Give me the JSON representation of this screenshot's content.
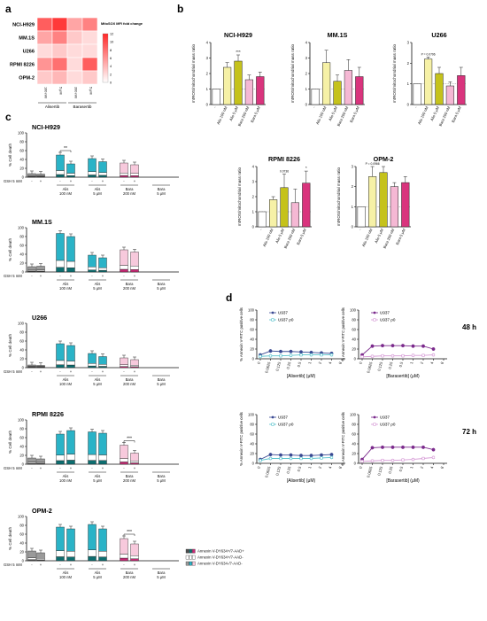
{
  "panel_labels": {
    "a": "a",
    "b": "b",
    "c": "c",
    "d": "d"
  },
  "colors": {
    "white_bar": "#ffffff",
    "alis_light": "#f6f1a6",
    "alis_dark": "#c5c21b",
    "bara_light": "#f5b8d4",
    "bara_dark": "#d9347d",
    "cyan": "#2ab3c7",
    "cyan_dark": "#0d6e70",
    "pink": "#f7c9dc",
    "pink_dark": "#c82a76",
    "grey": "#9a9a9a",
    "grey_dark": "#4d4d4d",
    "u937": "#3a4a93",
    "u937_rho": "#57c2cc",
    "u937_2": "#7b2a8c",
    "u937_rho_2": "#d69ad6"
  },
  "heatmap": {
    "rows": [
      "NCI-H929",
      "MM.1S",
      "U266",
      "RPMI 8226",
      "OPM-2"
    ],
    "cols": [
      "100 nM",
      "5 μM",
      "200 nM",
      "5 μM"
    ],
    "groups": [
      "Alisertib",
      "Barasertib"
    ],
    "values": [
      [
        9,
        11,
        5,
        7
      ],
      [
        5,
        7,
        3,
        2
      ],
      [
        2,
        3,
        2,
        2
      ],
      [
        6,
        8,
        2,
        9
      ],
      [
        3,
        4,
        2,
        3
      ]
    ],
    "legend_title": "MitoSOX MFI fold change",
    "legend_ticks": [
      "12",
      "10",
      "8",
      "6",
      "4",
      "2",
      "0"
    ]
  },
  "chart_b": {
    "ylabel": "mtROS/mitochondrial mass ratio",
    "categories": [
      "-",
      "Alis 100 nM",
      "Alis 5 μM",
      "Bara 200 nM",
      "Bara 5 μM"
    ],
    "top_row": [
      {
        "title": "NCI-H929",
        "ylim": [
          0,
          4
        ],
        "yticks": [
          "0",
          "1",
          "2",
          "3",
          "4"
        ],
        "values": [
          1,
          2.4,
          2.8,
          1.6,
          1.8
        ],
        "errors": [
          0,
          0.3,
          0.4,
          0.3,
          0.3
        ],
        "marks": [
          "",
          "",
          "***",
          "",
          ""
        ]
      },
      {
        "title": "MM.1S",
        "ylim": [
          0,
          4
        ],
        "yticks": [
          "0",
          "1",
          "2",
          "3",
          "4"
        ],
        "values": [
          1,
          2.7,
          1.5,
          2.2,
          1.8
        ],
        "errors": [
          0,
          0.8,
          0.4,
          0.7,
          0.6
        ],
        "marks": [
          "",
          "",
          "",
          "",
          ""
        ]
      },
      {
        "title": "U266",
        "ylim": [
          0,
          3
        ],
        "yticks": [
          "0",
          "1",
          "2",
          "3"
        ],
        "values": [
          1,
          2.2,
          1.5,
          0.9,
          1.4
        ],
        "errors": [
          0,
          0.1,
          0.3,
          0.2,
          0.4
        ],
        "marks": [
          "",
          "P = 0.0796",
          "",
          "",
          ""
        ]
      }
    ],
    "bottom_row": [
      {
        "title": "RPMI 8226",
        "ylim": [
          0,
          4
        ],
        "yticks": [
          "0",
          "1",
          "2",
          "3",
          "4"
        ],
        "values": [
          1,
          1.8,
          2.6,
          1.6,
          2.9
        ],
        "errors": [
          0,
          0.2,
          0.9,
          0.9,
          0.8
        ],
        "marks": [
          "",
          "",
          "0.0736",
          "",
          "*"
        ]
      },
      {
        "title": "OPM-2",
        "ylim": [
          0,
          3
        ],
        "yticks": [
          "0",
          "1",
          "2",
          "3"
        ],
        "values": [
          1,
          2.5,
          2.7,
          2,
          2.2
        ],
        "errors": [
          0,
          0.5,
          0.3,
          0.2,
          0.3
        ],
        "marks": [
          "",
          "P = 0.0966",
          "",
          "",
          ""
        ]
      }
    ]
  },
  "chart_c": {
    "ylabel": "% Cell death",
    "yticks": [
      "0",
      "20",
      "40",
      "60",
      "80",
      "100"
    ],
    "gsh_label": "GSH 5 mM",
    "gsh_values": [
      "-",
      "+"
    ],
    "groups": [
      "Alis 100 nM",
      "Alis 5 μM",
      "Bara 200 nM",
      "Bara 5 μM"
    ],
    "legend": [
      "Annexin V-DY634+/7-AAD+",
      "Annexin V-DY634+/7-AAD-",
      "Annexin V-DY634-/7-AAD-"
    ],
    "panels": [
      {
        "title": "NCI-H929",
        "totals": [
          8,
          7,
          50,
          30,
          42,
          35,
          32,
          28
        ],
        "sig": [
          {
            "g": 0,
            "t": "**"
          }
        ]
      },
      {
        "title": "MM.1S",
        "totals": [
          12,
          13,
          87,
          80,
          38,
          32,
          50,
          45
        ],
        "sig": []
      },
      {
        "title": "U266",
        "totals": [
          6,
          5,
          54,
          50,
          32,
          25,
          22,
          18
        ],
        "sig": []
      },
      {
        "title": "RPMI 8226",
        "totals": [
          14,
          12,
          68,
          76,
          73,
          70,
          43,
          25
        ],
        "sig": [
          {
            "g": 2,
            "t": "***"
          },
          {
            "g": 3,
            "t": "*"
          }
        ]
      },
      {
        "title": "OPM-2",
        "totals": [
          22,
          18,
          76,
          72,
          82,
          72,
          50,
          38
        ],
        "sig": [
          {
            "g": 2,
            "t": "***"
          },
          {
            "g": 3,
            "t": "*"
          }
        ]
      }
    ]
  },
  "chart_d": {
    "ylabel": "% Annexin V-FITC positive cells",
    "x_ticks": [
      "0",
      "0.0625",
      "0.125",
      "0.25",
      "0.5",
      "1",
      "2",
      "4",
      "8"
    ],
    "xlabel_left": "[Alisertib] (μM)",
    "xlabel_right": "[Barasertib] (μM)",
    "series_names": [
      "U937",
      "U937 ρ0"
    ],
    "rows": [
      {
        "time": "48 h",
        "left": {
          "ylim": [
            0,
            100
          ],
          "yticks": [
            "0",
            "20",
            "40",
            "60",
            "80",
            "100"
          ],
          "s1": [
            8,
            16,
            15,
            15,
            14,
            13,
            12,
            11
          ],
          "s2": [
            5,
            6,
            6,
            7,
            8,
            8,
            8,
            8
          ]
        },
        "right": {
          "ylim": [
            0,
            100
          ],
          "yticks": [
            "0",
            "20",
            "40",
            "60",
            "80",
            "100"
          ],
          "s1": [
            8,
            26,
            27,
            27,
            27,
            26,
            26,
            20
          ],
          "s2": [
            4,
            5,
            6,
            6,
            6,
            7,
            7,
            8
          ]
        }
      },
      {
        "time": "72 h",
        "left": {
          "ylim": [
            0,
            100
          ],
          "yticks": [
            "0",
            "20",
            "40",
            "60",
            "80",
            "100"
          ],
          "s1": [
            8,
            18,
            17,
            17,
            16,
            16,
            17,
            18
          ],
          "s2": [
            6,
            10,
            10,
            10,
            10,
            10,
            11,
            12
          ]
        },
        "right": {
          "ylim": [
            0,
            100
          ],
          "yticks": [
            "0",
            "20",
            "40",
            "60",
            "80",
            "100"
          ],
          "s1": [
            8,
            32,
            33,
            33,
            33,
            33,
            33,
            28
          ],
          "s2": [
            4,
            5,
            6,
            6,
            7,
            8,
            10,
            12
          ]
        }
      }
    ]
  }
}
